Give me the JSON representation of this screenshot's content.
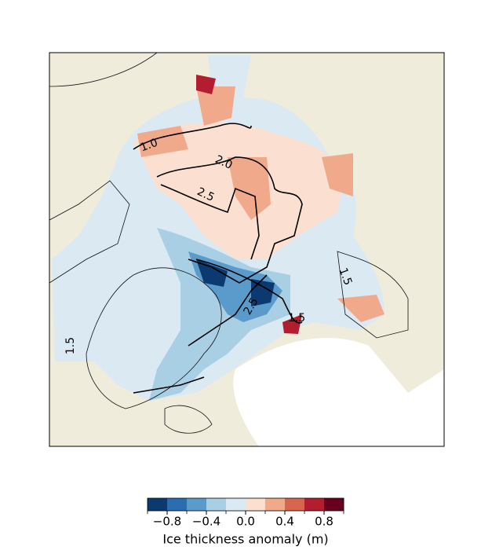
{
  "colorbar": {
    "label": "Ice thickness anomaly (m)",
    "lim": [
      -1.0,
      1.0
    ],
    "colors": [
      "#0a3a70",
      "#2a6db0",
      "#5b9bcb",
      "#a9cfe4",
      "#dbe9f3",
      "#fbe0d2",
      "#f0a98a",
      "#d8664f",
      "#b21e2f",
      "#67001f"
    ],
    "ticks": [
      {
        "value": -0.8,
        "label": "−0.8"
      },
      {
        "value": -0.4,
        "label": "−0.4"
      },
      {
        "value": 0.0,
        "label": "0.0"
      },
      {
        "value": 0.4,
        "label": "0.4"
      },
      {
        "value": 0.8,
        "label": "0.8"
      }
    ]
  },
  "contour_labels": [
    "1.0",
    "2.0",
    "2.5",
    "1.5",
    "1.5",
    "1.5",
    "2.5"
  ]
}
